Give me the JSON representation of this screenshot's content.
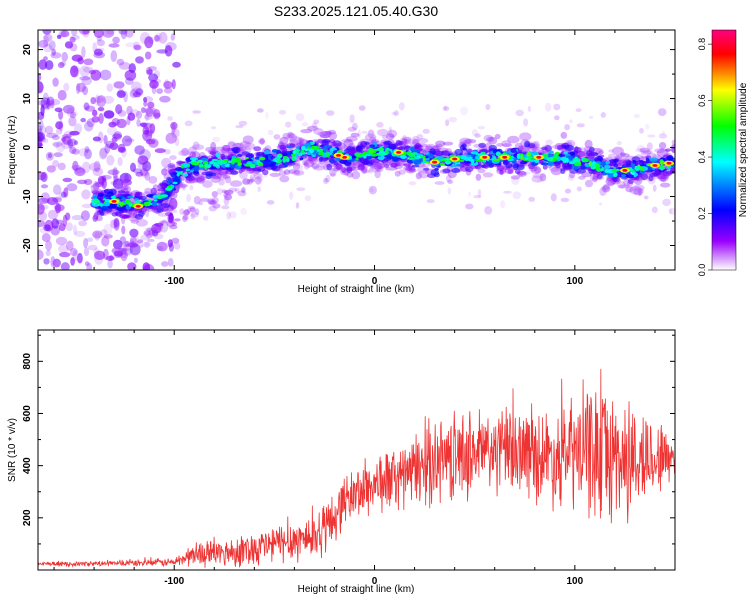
{
  "title": "S233.2025.121.05.40.G30",
  "chart_data": [
    {
      "type": "heatmap",
      "name": "spectrogram",
      "xlabel": "Height of straight line (km)",
      "ylabel": "Frequency (Hz)",
      "xlim": [
        -168,
        150
      ],
      "ylim": [
        -25,
        24
      ],
      "xticks": [
        -100,
        0,
        100
      ],
      "yticks": [
        -20,
        -10,
        0,
        10,
        20
      ],
      "colorbar": {
        "label": "Normalized spectral amplitude",
        "range": [
          0,
          0.85
        ],
        "ticks": [
          0.0,
          0.2,
          0.4,
          0.6,
          0.8
        ],
        "colormap": [
          "#ffffff",
          "#8800ff",
          "#0000ff",
          "#00ffff",
          "#00ff00",
          "#ffff00",
          "#ff0000",
          "#ff0080"
        ]
      },
      "ridge": [
        {
          "x": -168,
          "y": -10
        },
        {
          "x": -130,
          "y": -11
        },
        {
          "x": -118,
          "y": -12
        },
        {
          "x": -105,
          "y": -10
        },
        {
          "x": -95,
          "y": -4
        },
        {
          "x": -75,
          "y": -3
        },
        {
          "x": -60,
          "y": -3
        },
        {
          "x": -45,
          "y": -2
        },
        {
          "x": -30,
          "y": 0
        },
        {
          "x": -15,
          "y": -2
        },
        {
          "x": 0,
          "y": -1
        },
        {
          "x": 15,
          "y": -1
        },
        {
          "x": 30,
          "y": -3
        },
        {
          "x": 45,
          "y": -2
        },
        {
          "x": 60,
          "y": -2
        },
        {
          "x": 75,
          "y": -2
        },
        {
          "x": 90,
          "y": -2
        },
        {
          "x": 105,
          "y": -3
        },
        {
          "x": 120,
          "y": -5
        },
        {
          "x": 135,
          "y": -4
        },
        {
          "x": 150,
          "y": -3
        }
      ]
    },
    {
      "type": "line",
      "name": "snr",
      "xlabel": "Height of straight line (km)",
      "ylabel": "SNR (10 * v/v)",
      "xlim": [
        -168,
        150
      ],
      "ylim": [
        0,
        920
      ],
      "xticks": [
        -100,
        0,
        100
      ],
      "yticks": [
        200,
        400,
        600,
        800
      ],
      "line_color": "#ee3333",
      "envelope": [
        {
          "x": -168,
          "mean": 22,
          "amp": 10
        },
        {
          "x": -130,
          "mean": 25,
          "amp": 12
        },
        {
          "x": -100,
          "mean": 30,
          "amp": 20
        },
        {
          "x": -90,
          "mean": 60,
          "amp": 55
        },
        {
          "x": -70,
          "mean": 70,
          "amp": 70
        },
        {
          "x": -50,
          "mean": 100,
          "amp": 90
        },
        {
          "x": -30,
          "mean": 130,
          "amp": 110
        },
        {
          "x": -22,
          "mean": 180,
          "amp": 130
        },
        {
          "x": -15,
          "mean": 270,
          "amp": 110
        },
        {
          "x": 0,
          "mean": 330,
          "amp": 140
        },
        {
          "x": 15,
          "mean": 360,
          "amp": 150
        },
        {
          "x": 30,
          "mean": 420,
          "amp": 200
        },
        {
          "x": 50,
          "mean": 450,
          "amp": 200
        },
        {
          "x": 70,
          "mean": 460,
          "amp": 200
        },
        {
          "x": 90,
          "mean": 430,
          "amp": 220
        },
        {
          "x": 110,
          "mean": 460,
          "amp": 320
        },
        {
          "x": 125,
          "mean": 420,
          "amp": 300
        },
        {
          "x": 140,
          "mean": 430,
          "amp": 180
        },
        {
          "x": 150,
          "mean": 440,
          "amp": 120
        }
      ]
    }
  ]
}
